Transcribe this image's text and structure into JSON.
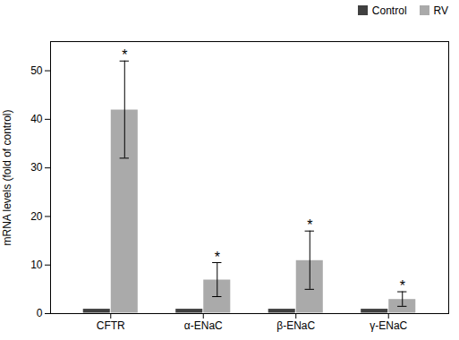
{
  "chart_data": {
    "type": "bar",
    "categories": [
      "CFTR",
      "α-ENaC",
      "β-ENaC",
      "γ-ENaC"
    ],
    "series": [
      {
        "name": "Control",
        "color": "#404040",
        "values": [
          1,
          1,
          1,
          1
        ]
      },
      {
        "name": "RV",
        "color": "#aaaaaa",
        "values": [
          42,
          7,
          11,
          3
        ],
        "errors": [
          10,
          3.5,
          6,
          1.5
        ]
      }
    ],
    "ylabel": "mRNA levels (fold of control)",
    "ylim": [
      0,
      56
    ],
    "yticks": [
      0,
      10,
      20,
      30,
      40,
      50
    ],
    "grid": false,
    "legend": "upper right",
    "annotations": [
      {
        "text": "*",
        "category": "CFTR",
        "series": "RV"
      },
      {
        "text": "*",
        "category": "α-ENaC",
        "series": "RV"
      },
      {
        "text": "*",
        "category": "β-ENaC",
        "series": "RV"
      },
      {
        "text": "*",
        "category": "γ-ENaC",
        "series": "RV"
      }
    ]
  }
}
